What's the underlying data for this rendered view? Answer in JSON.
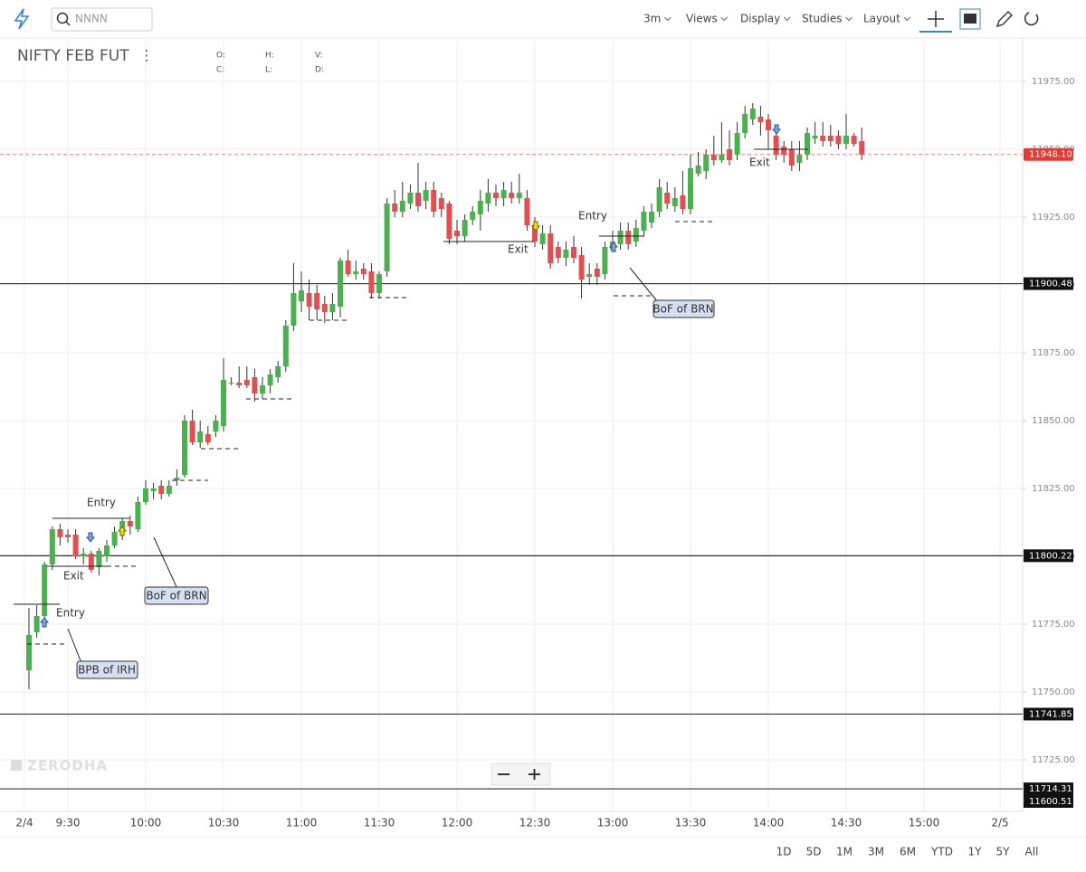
{
  "toolbar": {
    "search": "NNNN",
    "menus": [
      "3m",
      "Views",
      "Display",
      "Studies",
      "Layout"
    ],
    "ranges": [
      "1D",
      "5D",
      "1M",
      "3M",
      "6M",
      "YTD",
      "1Y",
      "5Y",
      "All"
    ]
  },
  "legend": {
    "symbol": "NIFTY FEB FUT",
    "fields": [
      "O:",
      "H:",
      "V:",
      "C:",
      "L:",
      "D:"
    ]
  },
  "watermark": "ZERODHA",
  "annotations": [
    "Entry",
    "Exit",
    "Entry",
    "BoF of BRN",
    "BPB of IRH",
    "Entry",
    "Exit",
    "BoF of BRN",
    "Exit"
  ],
  "chart_data": {
    "type": "candlestick",
    "up_color": "#4caf50",
    "down_color": "#e15050",
    "x": [
      "9:15",
      "9:18",
      "9:21",
      "9:24",
      "9:27",
      "9:30",
      "9:33",
      "9:36",
      "9:39",
      "9:42",
      "9:45",
      "9:48",
      "9:51",
      "9:54",
      "9:57",
      "10:00",
      "10:03",
      "10:06",
      "10:09",
      "10:12",
      "10:15",
      "10:18",
      "10:21",
      "10:24",
      "10:27",
      "10:30",
      "10:33",
      "10:36",
      "10:39",
      "10:42",
      "10:45",
      "10:48",
      "10:51",
      "10:54",
      "10:57",
      "11:00",
      "11:03",
      "11:06",
      "11:09",
      "11:12",
      "11:15",
      "11:18",
      "11:21",
      "11:24",
      "11:27",
      "11:30",
      "11:33",
      "11:36",
      "11:39",
      "11:42",
      "11:45",
      "11:48",
      "11:51",
      "11:54",
      "11:57",
      "12:00",
      "12:03",
      "12:06",
      "12:09",
      "12:12",
      "12:15",
      "12:18",
      "12:21",
      "12:24",
      "12:27",
      "12:30",
      "12:33",
      "12:36",
      "12:39",
      "12:42",
      "12:45",
      "12:48",
      "12:51",
      "12:54",
      "12:57",
      "13:00",
      "13:03",
      "13:06",
      "13:09",
      "13:12",
      "13:15",
      "13:18",
      "13:21",
      "13:24",
      "13:27",
      "13:30",
      "13:33",
      "13:36",
      "13:39",
      "13:42",
      "13:45",
      "13:48",
      "13:51",
      "13:54",
      "13:57",
      "14:00",
      "14:03",
      "14:06",
      "14:09",
      "14:12",
      "14:15",
      "14:18",
      "14:21",
      "14:24",
      "14:27",
      "14:30",
      "14:33",
      "14:36"
    ],
    "open": [
      11758,
      11772,
      11778,
      11797,
      11810,
      11808,
      11808,
      11800,
      11801,
      11796,
      11800,
      11804,
      11809,
      11813,
      11810,
      11820,
      11824,
      11826,
      11823,
      11828,
      11830,
      11850,
      11842,
      11845,
      11846,
      11848,
      11864,
      11864,
      11865,
      11866,
      11860,
      11863,
      11866,
      11870,
      11885,
      11894,
      11897,
      11897,
      11893,
      11890,
      11892,
      11909,
      11904,
      11906,
      11905,
      11897,
      11905,
      11930,
      11927,
      11930,
      11934,
      11931,
      11935,
      11932,
      11930,
      11920,
      11918,
      11924,
      11926,
      11930,
      11934,
      11932,
      11934,
      11932,
      11932,
      11922,
      11915,
      11919,
      11914,
      11910,
      11914,
      11911,
      11903,
      11906,
      11904,
      11913,
      11915,
      11920,
      11916,
      11920,
      11923,
      11927,
      11934,
      11929,
      11933,
      11928,
      11941,
      11942,
      11948,
      11946,
      11950,
      11948,
      11956,
      11961,
      11962,
      11961,
      11955,
      11951,
      11950,
      11945,
      11948,
      11954,
      11955,
      11955,
      11955,
      11952,
      11955,
      11953
    ],
    "high": [
      11781,
      11782,
      11798,
      11811,
      11812,
      11810,
      11810,
      11803,
      11802,
      11803,
      11806,
      11811,
      11814,
      11815,
      11822,
      11828,
      11827,
      11828,
      11828,
      11832,
      11852,
      11854,
      11850,
      11848,
      11852,
      11873,
      11866,
      11870,
      11870,
      11869,
      11866,
      11869,
      11872,
      11887,
      11908,
      11905,
      11902,
      11900,
      11896,
      11897,
      11910,
      11913,
      11909,
      11908,
      11908,
      11905,
      11932,
      11935,
      11938,
      11937,
      11945,
      11938,
      11938,
      11934,
      11931,
      11924,
      11926,
      11929,
      11935,
      11939,
      11937,
      11938,
      11938,
      11941,
      11935,
      11925,
      11922,
      11922,
      11916,
      11916,
      11918,
      11914,
      11908,
      11908,
      11916,
      11920,
      11923,
      11923,
      11924,
      11929,
      11930,
      11939,
      11938,
      11936,
      11942,
      11948,
      11949,
      11950,
      11955,
      11960,
      11957,
      11960,
      11966,
      11967,
      11966,
      11963,
      11958,
      11953,
      11953,
      11953,
      11958,
      11960,
      11960,
      11959,
      11957,
      11963,
      11956,
      11958
    ],
    "low": [
      11751,
      11770,
      11776,
      11795,
      11804,
      11805,
      11799,
      11797,
      11794,
      11793,
      11798,
      11803,
      11806,
      11808,
      11809,
      11819,
      11821,
      11821,
      11822,
      11826,
      11829,
      11841,
      11840,
      11841,
      11844,
      11846,
      11863,
      11862,
      11862,
      11857,
      11858,
      11860,
      11864,
      11868,
      11883,
      11890,
      11887,
      11887,
      11886,
      11887,
      11888,
      11903,
      11902,
      11902,
      11895,
      11895,
      11903,
      11925,
      11925,
      11928,
      11927,
      11928,
      11925,
      11925,
      11915,
      11915,
      11916,
      11922,
      11920,
      11927,
      11929,
      11929,
      11930,
      11930,
      11920,
      11914,
      11913,
      11906,
      11908,
      11907,
      11908,
      11895,
      11900,
      11900,
      11902,
      11912,
      11913,
      11913,
      11914,
      11918,
      11921,
      11925,
      11928,
      11927,
      11926,
      11926,
      11940,
      11939,
      11944,
      11945,
      11944,
      11946,
      11954,
      11959,
      11955,
      11950,
      11946,
      11945,
      11942,
      11942,
      11946,
      11952,
      11951,
      11951,
      11950,
      11950,
      11951,
      11946
    ],
    "close": [
      11771,
      11778,
      11797,
      11810,
      11807,
      11807,
      11800,
      11801,
      11795,
      11802,
      11804,
      11809,
      11813,
      11811,
      11820,
      11825,
      11825,
      11823,
      11826,
      11829,
      11850,
      11842,
      11846,
      11842,
      11850,
      11865,
      11864,
      11863,
      11863,
      11860,
      11863,
      11867,
      11870,
      11885,
      11897,
      11898,
      11892,
      11891,
      11890,
      11893,
      11909,
      11904,
      11905,
      11904,
      11897,
      11904,
      11930,
      11927,
      11931,
      11934,
      11929,
      11935,
      11927,
      11928,
      11917,
      11918,
      11924,
      11927,
      11931,
      11934,
      11932,
      11935,
      11932,
      11934,
      11922,
      11916,
      11919,
      11908,
      11910,
      11913,
      11910,
      11902,
      11904,
      11903,
      11914,
      11916,
      11920,
      11915,
      11921,
      11927,
      11927,
      11936,
      11930,
      11932,
      11928,
      11943,
      11944,
      11948,
      11946,
      11948,
      11946,
      11956,
      11963,
      11965,
      11960,
      11957,
      11948,
      11948,
      11944,
      11948,
      11956,
      11955,
      11953,
      11953,
      11952,
      11955,
      11952,
      11948.1
    ],
    "ylim": [
      11706,
      11990
    ],
    "yticks": [
      {
        "value": 11725,
        "label": "11725.00"
      },
      {
        "value": 11750,
        "label": "11750.00"
      },
      {
        "value": 11775,
        "label": "11775.00"
      },
      {
        "value": 11800,
        "label": "11800.00"
      },
      {
        "value": 11825,
        "label": "11825.00"
      },
      {
        "value": 11850,
        "label": "11850.00"
      },
      {
        "value": 11875,
        "label": "11875.00"
      },
      {
        "value": 11900,
        "label": "11900.00"
      },
      {
        "value": 11925,
        "label": "11925.00"
      },
      {
        "value": 11950,
        "label": "11950.00"
      },
      {
        "value": 11975,
        "label": "11975.00"
      }
    ],
    "xticks": [
      "2/4",
      "9:30",
      "10:00",
      "10:30",
      "11:00",
      "11:30",
      "12:00",
      "12:30",
      "13:00",
      "13:30",
      "14:00",
      "14:30",
      "15:00",
      "2/5"
    ],
    "levels": [
      11900.48,
      11800.22,
      11741.85,
      11714.31,
      11600.51
    ],
    "last_price": {
      "value": 11948.1,
      "label": "11948.10"
    },
    "grid": true
  }
}
